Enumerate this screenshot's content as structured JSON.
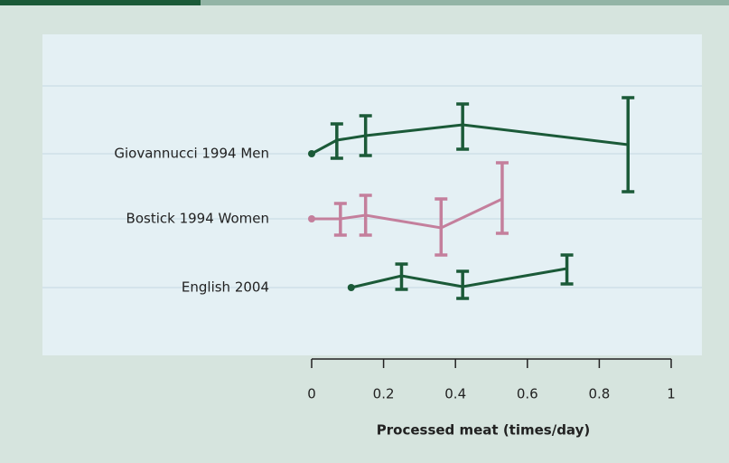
{
  "chart_data": {
    "type": "line",
    "xlabel": "Processed meat (times/day)",
    "xlim": [
      0,
      1
    ],
    "xticks": [
      0,
      0.2,
      0.4,
      0.6,
      0.8,
      1
    ],
    "series": [
      {
        "name": "Giovannucci 1994 Men",
        "color": "#1b5a38",
        "x": [
          0,
          0.07,
          0.15,
          0.42,
          0.88
        ],
        "values": [
          1,
          1.15,
          1.2,
          1.32,
          1.1
        ],
        "lower": [
          null,
          0.95,
          0.98,
          1.05,
          0.58
        ],
        "upper": [
          null,
          1.33,
          1.42,
          1.55,
          1.62
        ]
      },
      {
        "name": "Bostick 1994 Women",
        "color": "#c47f9c",
        "x": [
          0,
          0.08,
          0.15,
          0.36,
          0.53
        ],
        "values": [
          1,
          1,
          1.04,
          0.9,
          1.22
        ],
        "lower": [
          null,
          0.82,
          0.82,
          0.6,
          0.84
        ],
        "upper": [
          null,
          1.17,
          1.26,
          1.22,
          1.62
        ]
      },
      {
        "name": "English 2004",
        "color": "#1b5a38",
        "x": [
          0.11,
          0.25,
          0.42,
          0.71
        ],
        "values": [
          1,
          1.13,
          1.01,
          1.21
        ],
        "lower": [
          null,
          0.98,
          0.88,
          1.04
        ],
        "upper": [
          null,
          1.26,
          1.18,
          1.36
        ]
      }
    ]
  }
}
